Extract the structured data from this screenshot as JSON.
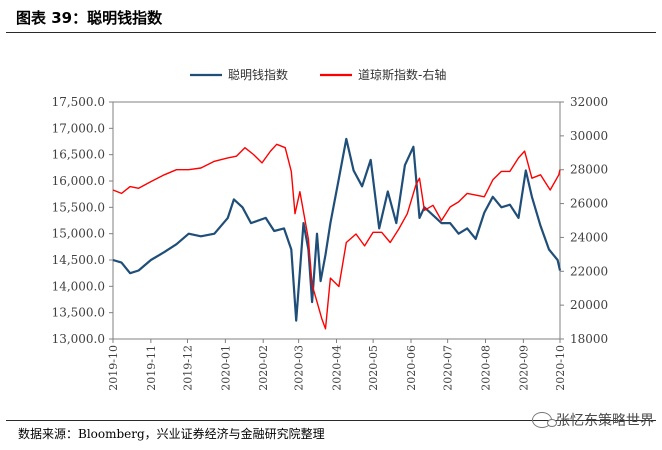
{
  "header": {
    "title": "图表 39：聪明钱指数"
  },
  "footer": {
    "source": "数据来源：Bloomberg，兴业证券经济与金融研究院整理"
  },
  "watermark": {
    "text": "张忆东策略世界"
  },
  "colors": {
    "smart_money": "#1f4e79",
    "dow": "#ff0000",
    "axis": "#808080"
  },
  "chart_data": {
    "type": "line",
    "legend_position": "top-center",
    "grid": false,
    "x_ticks": [
      "2019-10",
      "2019-11",
      "2019-12",
      "2020-01",
      "2020-02",
      "2020-03",
      "2020-04",
      "2020-05",
      "2020-06",
      "2020-07",
      "2020-08",
      "2020-09",
      "2020-10"
    ],
    "y_left": {
      "min": 13000,
      "max": 17500,
      "step": 500,
      "ticks": [
        "13,000.0",
        "13,500.0",
        "14,000.0",
        "14,500.0",
        "15,000.0",
        "15,500.0",
        "16,000.0",
        "16,500.0",
        "17,000.0",
        "17,500.0"
      ]
    },
    "y_right": {
      "min": 18000,
      "max": 32000,
      "step": 2000,
      "ticks": [
        "18000",
        "20000",
        "22000",
        "24000",
        "26000",
        "28000",
        "30000",
        "32000"
      ]
    },
    "series": [
      {
        "name": "聪明钱指数",
        "axis": "left",
        "color": "#1f4e79",
        "x": [
          "2019-10-01",
          "2019-10-08",
          "2019-10-15",
          "2019-10-22",
          "2019-11-01",
          "2019-11-12",
          "2019-11-22",
          "2019-12-02",
          "2019-12-12",
          "2019-12-23",
          "2020-01-03",
          "2020-01-08",
          "2020-01-15",
          "2020-01-22",
          "2020-02-03",
          "2020-02-10",
          "2020-02-18",
          "2020-02-24",
          "2020-02-28",
          "2020-03-05",
          "2020-03-09",
          "2020-03-12",
          "2020-03-16",
          "2020-03-19",
          "2020-03-23",
          "2020-03-27",
          "2020-04-03",
          "2020-04-09",
          "2020-04-15",
          "2020-04-22",
          "2020-04-29",
          "2020-05-06",
          "2020-05-13",
          "2020-05-20",
          "2020-05-27",
          "2020-06-03",
          "2020-06-08",
          "2020-06-12",
          "2020-06-19",
          "2020-06-26",
          "2020-07-03",
          "2020-07-10",
          "2020-07-17",
          "2020-07-24",
          "2020-07-31",
          "2020-08-07",
          "2020-08-14",
          "2020-08-21",
          "2020-08-28",
          "2020-09-03",
          "2020-09-08",
          "2020-09-15",
          "2020-09-22",
          "2020-09-29",
          "2020-10-01"
        ],
        "y": [
          14500,
          14450,
          14250,
          14300,
          14500,
          14650,
          14800,
          15000,
          14950,
          15000,
          15300,
          15650,
          15500,
          15200,
          15300,
          15050,
          15100,
          14700,
          13350,
          15200,
          14700,
          13700,
          15000,
          14100,
          14600,
          15200,
          16050,
          16800,
          16200,
          15900,
          16400,
          15100,
          15800,
          15200,
          16300,
          16650,
          15300,
          15500,
          15350,
          15200,
          15200,
          15000,
          15100,
          14900,
          15400,
          15700,
          15500,
          15550,
          15300,
          16200,
          15700,
          15150,
          14700,
          14500,
          14300
        ]
      },
      {
        "name": "道琼斯指数-右轴",
        "axis": "right",
        "color": "#ff0000",
        "x": [
          "2019-10-01",
          "2019-10-08",
          "2019-10-15",
          "2019-10-22",
          "2019-11-01",
          "2019-11-12",
          "2019-11-22",
          "2019-12-02",
          "2019-12-12",
          "2019-12-23",
          "2020-01-03",
          "2020-01-10",
          "2020-01-17",
          "2020-01-24",
          "2020-01-31",
          "2020-02-07",
          "2020-02-12",
          "2020-02-19",
          "2020-02-24",
          "2020-02-27",
          "2020-03-02",
          "2020-03-09",
          "2020-03-12",
          "2020-03-16",
          "2020-03-20",
          "2020-03-23",
          "2020-03-27",
          "2020-04-03",
          "2020-04-09",
          "2020-04-17",
          "2020-04-24",
          "2020-05-01",
          "2020-05-08",
          "2020-05-15",
          "2020-05-22",
          "2020-05-29",
          "2020-06-05",
          "2020-06-08",
          "2020-06-12",
          "2020-06-19",
          "2020-06-26",
          "2020-07-03",
          "2020-07-10",
          "2020-07-17",
          "2020-07-24",
          "2020-07-31",
          "2020-08-07",
          "2020-08-14",
          "2020-08-21",
          "2020-08-28",
          "2020-09-02",
          "2020-09-08",
          "2020-09-15",
          "2020-09-23",
          "2020-09-30",
          "2020-10-01"
        ],
        "y": [
          26800,
          26600,
          27000,
          26900,
          27300,
          27700,
          28000,
          28000,
          28100,
          28500,
          28700,
          28800,
          29300,
          28900,
          28400,
          29100,
          29500,
          29300,
          27900,
          25400,
          26700,
          23900,
          21200,
          20200,
          19200,
          18600,
          21600,
          21100,
          23700,
          24200,
          23500,
          24300,
          24300,
          23700,
          24500,
          25400,
          27100,
          27500,
          25600,
          25900,
          25000,
          25800,
          26100,
          26600,
          26500,
          26400,
          27400,
          27900,
          27900,
          28700,
          29100,
          27500,
          27700,
          26800,
          27700,
          28000
        ]
      }
    ]
  }
}
